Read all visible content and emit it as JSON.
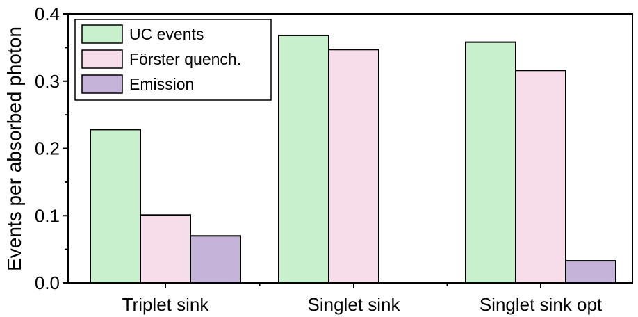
{
  "chart_data": {
    "type": "bar",
    "categories": [
      "Triplet sink",
      "Singlet sink",
      "Singlet sink opt"
    ],
    "series": [
      {
        "name": "UC events",
        "values": [
          0.228,
          0.368,
          0.358
        ],
        "color": "#c8f0cc"
      },
      {
        "name": "Förster quench.",
        "values": [
          0.101,
          0.347,
          0.316
        ],
        "color": "#f7dde9"
      },
      {
        "name": "Emission",
        "values": [
          0.07,
          0.0,
          0.033
        ],
        "color": "#c5b3da"
      }
    ],
    "ylabel": "Events per absorbed photon",
    "xlabel": "",
    "ylim": [
      0,
      0.4
    ],
    "yticks": [
      "0.0",
      "0.1",
      "0.2",
      "0.3",
      "0.4"
    ],
    "ytick_values": [
      0,
      0.1,
      0.2,
      0.3,
      0.4
    ],
    "grid": false,
    "legend_position": "top-left",
    "bar_edge_color": "#000000"
  }
}
